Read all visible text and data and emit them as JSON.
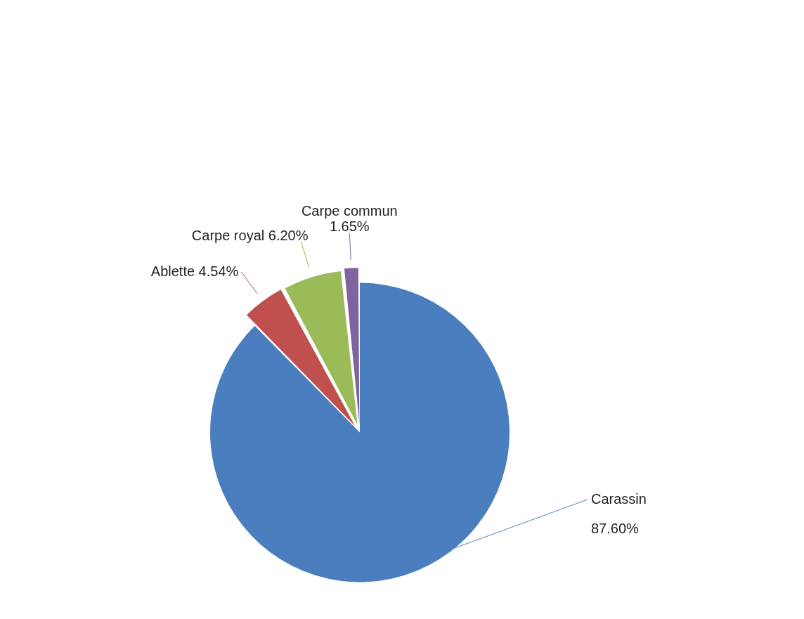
{
  "chart_data": {
    "type": "pie",
    "categories": [
      "Carassin",
      "Ablette",
      "Carpe royal",
      "Carpe commun"
    ],
    "values": [
      87.6,
      4.54,
      6.2,
      1.65
    ],
    "colors": [
      "#4a7ebf",
      "#c0504d",
      "#9bbb59",
      "#8064a2"
    ],
    "value_labels": [
      "87.60%",
      "4.54%",
      "6.20%",
      "1.65%"
    ],
    "legend": false
  }
}
